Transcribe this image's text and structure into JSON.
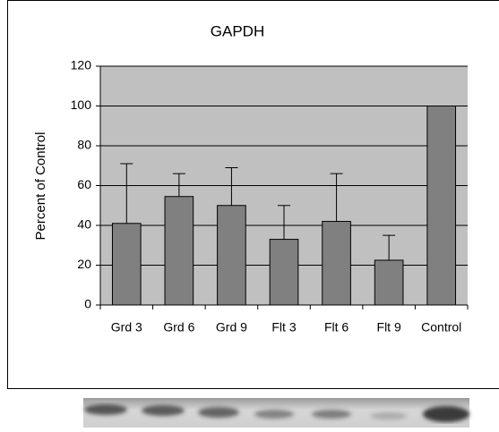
{
  "chart_data": {
    "type": "bar",
    "title": "GAPDH",
    "y_label": "Percent of Control",
    "categories": [
      "Grd 3",
      "Grd 6",
      "Grd 9",
      "Flt 3",
      "Flt 6",
      "Flt 9",
      "Control"
    ],
    "values": [
      41,
      54.5,
      50,
      33,
      42,
      22.5,
      100
    ],
    "errors": [
      30,
      11.5,
      19,
      17,
      24,
      12.5,
      0
    ],
    "color": "#808080",
    "plot_background": "#c0c0c0",
    "ylim": [
      0,
      120
    ],
    "yticks": [
      0,
      20,
      40,
      60,
      80,
      100,
      120
    ],
    "grid": true
  }
}
